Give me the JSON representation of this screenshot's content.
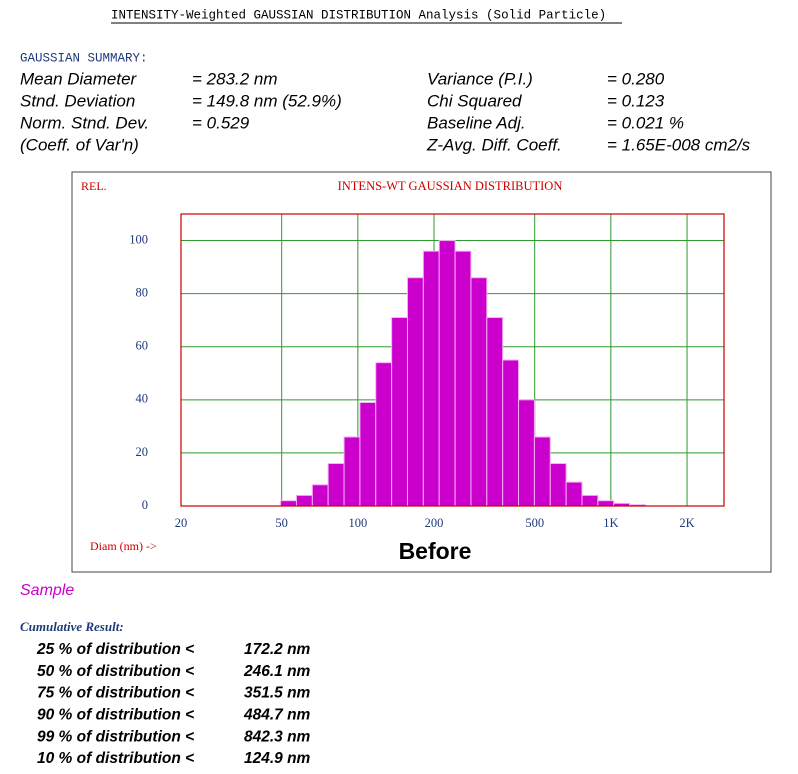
{
  "header": {
    "title": "INTENSITY-Weighted GAUSSIAN DISTRIBUTION Analysis (Solid Particle)"
  },
  "summary": {
    "heading": "GAUSSIAN SUMMARY:",
    "left": [
      [
        "Mean Diameter",
        "= 283.2 nm"
      ],
      [
        "Stnd. Deviation",
        "= 149.8 nm (52.9%)"
      ],
      [
        "Norm. Stnd. Dev.",
        "= 0.529"
      ],
      [
        "(Coeff. of Var'n)"
      ]
    ],
    "right": [
      [
        "Variance (P.I.)",
        "= 0.280"
      ],
      [
        "Chi Squared",
        "= 0.123"
      ],
      [
        "Baseline Adj.",
        "= 0.021 %"
      ],
      [
        "Z-Avg. Diff. Coeff.",
        "= 1.65E-008 cm2/s"
      ]
    ]
  },
  "chart_data": {
    "type": "histogram",
    "title": "INTENS-WT GAUSSIAN DISTRIBUTION",
    "ylabel": "REL.",
    "xlabel": "Diam (nm) ->",
    "annotation": "Before",
    "bins": [
      49.5,
      57.2,
      66.1,
      76.3,
      88.2,
      101.9,
      117.7,
      136.0,
      157.1,
      181.5,
      209.7,
      242.3,
      279.9,
      323.4,
      373.6,
      431.6,
      498.7,
      576.1,
      665.6,
      769.0,
      888.4,
      1026.4,
      1185.8,
      1370.0
    ],
    "values": [
      2,
      4,
      8,
      16,
      26,
      39,
      54,
      71,
      86,
      96,
      100,
      96,
      86,
      71,
      55,
      40,
      26,
      16,
      9,
      4,
      2,
      1,
      0.5
    ],
    "color": "#cc00cc",
    "log_x": true,
    "grid": true,
    "xlim": [
      20,
      2800
    ],
    "ylim": [
      0,
      110
    ],
    "xticks": [
      20,
      50,
      100,
      200,
      500,
      {
        "value": 1000,
        "label": "1K"
      },
      {
        "value": 2000,
        "label": "2K"
      }
    ],
    "yticks": [
      0,
      20,
      40,
      60,
      80,
      100
    ]
  },
  "sample": "Sample",
  "cumulative": {
    "heading": "Cumulative Result:",
    "rows": [
      [
        "25 % of distribution <",
        "172.2 nm"
      ],
      [
        "50 % of distribution <",
        "246.1 nm"
      ],
      [
        "75 % of distribution <",
        "351.5 nm"
      ],
      [
        "90 % of distribution <",
        "484.7 nm"
      ],
      [
        "99 % of distribution <",
        "842.3 nm"
      ],
      [
        "10 % of distribution <",
        "124.9 nm"
      ]
    ]
  }
}
